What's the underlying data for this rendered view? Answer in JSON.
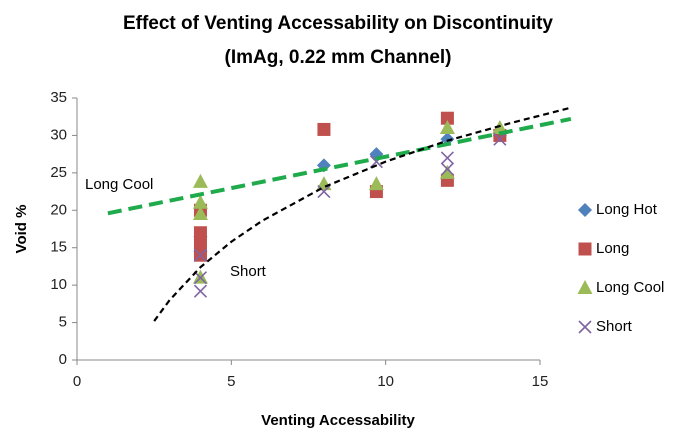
{
  "chart_data": {
    "type": "scatter",
    "title": "Effect of Venting Accessability on Discontinuity",
    "subtitle": "(ImAg, 0.22 mm Channel)",
    "x_label": "Venting Accessability",
    "y_label": "Void %",
    "xlim": [
      0,
      15
    ],
    "xticks": [
      0,
      5,
      10,
      15
    ],
    "ylim": [
      0,
      35
    ],
    "yticks": [
      0,
      5,
      10,
      15,
      20,
      25,
      30,
      35
    ],
    "grid": false,
    "legend": "right",
    "annotations": [
      "Long Cool",
      "Short"
    ],
    "series": [
      {
        "name": "Long Hot",
        "color": "#4f81bd",
        "marker": "diamond",
        "x": [
          4,
          4,
          8,
          9.7,
          12,
          13.7
        ],
        "values": [
          16.5,
          14.5,
          26,
          27.5,
          29.5,
          30
        ]
      },
      {
        "name": "Long",
        "color": "#c0504d",
        "marker": "square",
        "x": [
          4,
          4,
          4,
          4,
          8,
          9.7,
          12,
          12,
          13.7
        ],
        "values": [
          20,
          17,
          15.5,
          14,
          30.8,
          22.5,
          32.3,
          24,
          30
        ]
      },
      {
        "name": "Long Cool",
        "color": "#9bbb59",
        "marker": "triangle",
        "x": [
          4,
          4,
          4,
          4,
          8,
          9.7,
          12,
          12,
          13.7
        ],
        "values": [
          23.8,
          21,
          19.5,
          11,
          23.5,
          23.5,
          31,
          25,
          31
        ],
        "trendline": {
          "color": "#1faa4b",
          "x": [
            1,
            16
          ],
          "values": [
            19.6,
            32.2
          ]
        }
      },
      {
        "name": "Short",
        "color": "#8064a2",
        "marker": "x",
        "x": [
          4,
          4,
          4,
          8,
          9.7,
          12,
          12,
          13.7
        ],
        "values": [
          11,
          9.2,
          14,
          22.5,
          26.5,
          27,
          25.5,
          29.5
        ],
        "trendline": {
          "color": "#000000",
          "x": [
            2.5,
            3,
            4,
            5,
            6,
            8,
            10,
            12,
            14,
            16
          ],
          "values": [
            5.2,
            8,
            12.4,
            15.8,
            18.6,
            23.1,
            26.5,
            29.3,
            31.6,
            33.7
          ]
        }
      }
    ]
  }
}
